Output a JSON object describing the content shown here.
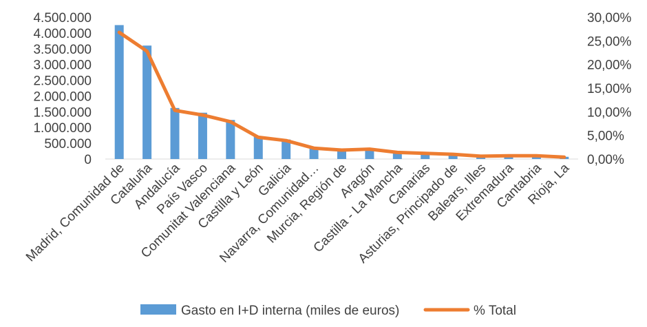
{
  "chart_data": {
    "type": "bar",
    "categories": [
      "Madrid, Comunidad de",
      "Cataluña",
      "Andalucía",
      "País Vasco",
      "Comunitat Valenciana",
      "Castilla y León",
      "Galicia",
      "Navarra, Comunidad…",
      "Murcia, Región de",
      "Aragón",
      "Castilla - La Mancha",
      "Canarias",
      "Asturias, Principado de",
      "Balears, Illes",
      "Extremadura",
      "Cantabria",
      "Rioja, La"
    ],
    "series": [
      {
        "name": "Gasto en I+D interna (miles de euros)",
        "type": "bar",
        "axis": "left",
        "color": "#5B9BD5",
        "values": [
          4250000,
          3600000,
          1620000,
          1470000,
          1240000,
          720000,
          620000,
          360000,
          290000,
          330000,
          190000,
          160000,
          140000,
          90000,
          110000,
          110000,
          70000
        ]
      },
      {
        "name": "% Total",
        "type": "line",
        "axis": "right",
        "color": "#ED7D31",
        "values": [
          26.8,
          22.8,
          10.3,
          9.3,
          7.9,
          4.6,
          3.9,
          2.3,
          1.9,
          2.1,
          1.4,
          1.2,
          1.0,
          0.6,
          0.7,
          0.7,
          0.4
        ]
      }
    ],
    "y_left": {
      "ylim": [
        0,
        4500000
      ],
      "ticks": [
        0,
        500000,
        1000000,
        1500000,
        2000000,
        2500000,
        3000000,
        3500000,
        4000000,
        4500000
      ],
      "tick_labels": [
        "0",
        "500.000",
        "1.000.000",
        "1.500.000",
        "2.000.000",
        "2.500.000",
        "3.000.000",
        "3.500.000",
        "4.000.000",
        "4.500.000"
      ]
    },
    "y_right": {
      "ylim": [
        0,
        30
      ],
      "ticks": [
        0,
        5,
        10,
        15,
        20,
        25,
        30
      ],
      "tick_labels": [
        "0,00%",
        "5,00%",
        "10,00%",
        "15,00%",
        "20,00%",
        "25,00%",
        "30,00%"
      ]
    },
    "grid": false,
    "legend_position": "bottom"
  }
}
